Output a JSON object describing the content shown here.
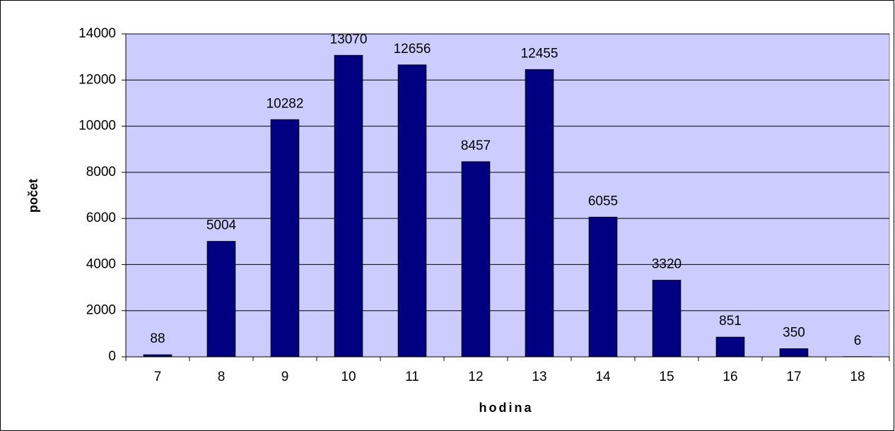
{
  "chart_data": {
    "type": "bar",
    "categories": [
      "7",
      "8",
      "9",
      "10",
      "11",
      "12",
      "13",
      "14",
      "15",
      "16",
      "17",
      "18"
    ],
    "values": [
      88,
      5004,
      10282,
      13070,
      12656,
      8457,
      12455,
      6055,
      3320,
      851,
      350,
      6
    ],
    "color": "#000080",
    "xlabel": "hodina",
    "ylabel": "počet",
    "ylim": [
      0,
      14000
    ],
    "yticks": [
      0,
      2000,
      4000,
      6000,
      8000,
      10000,
      12000,
      14000
    ],
    "grid": true,
    "plot_background": "#ccccff"
  }
}
